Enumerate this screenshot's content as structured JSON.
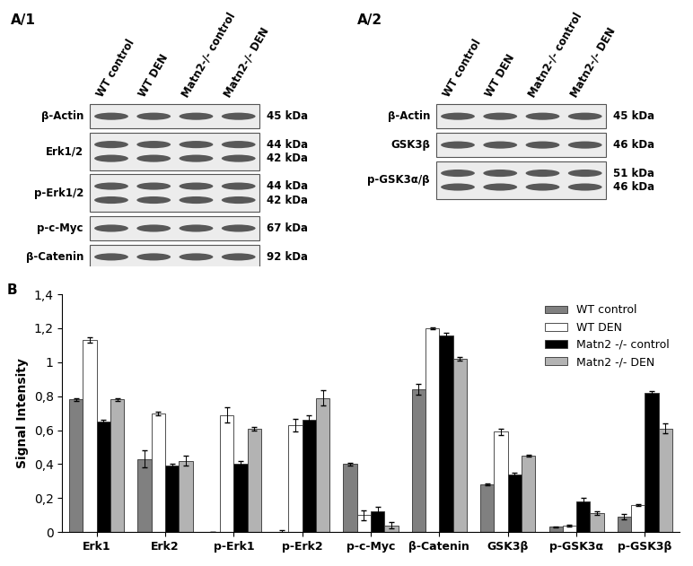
{
  "chart_data": {
    "type": "bar",
    "title": "B",
    "y_label": "Signal Intensity",
    "categories": [
      "Erk1",
      "Erk2",
      "p-Erk1",
      "p-Erk2",
      "p-c-Myc",
      "β-Catenin",
      "GSK3β",
      "p-GSK3α",
      "p-GSK3β"
    ],
    "series": [
      {
        "name": "WT control",
        "color": "#808080",
        "values": [
          0.78,
          0.43,
          0.0,
          0.0,
          0.4,
          0.84,
          0.28,
          0.03,
          0.09
        ],
        "errors": [
          0.01,
          0.05,
          0.0,
          0.01,
          0.01,
          0.03,
          0.005,
          0.005,
          0.015
        ]
      },
      {
        "name": "WT DEN",
        "color": "#ffffff",
        "values": [
          1.13,
          0.7,
          0.69,
          0.63,
          0.1,
          1.2,
          0.59,
          0.04,
          0.16
        ],
        "errors": [
          0.015,
          0.01,
          0.045,
          0.035,
          0.03,
          0.005,
          0.02,
          0.005,
          0.005
        ]
      },
      {
        "name": "Matn2 -/- control",
        "color": "#000000",
        "values": [
          0.65,
          0.39,
          0.4,
          0.66,
          0.12,
          1.16,
          0.34,
          0.18,
          0.82
        ],
        "errors": [
          0.01,
          0.01,
          0.02,
          0.03,
          0.03,
          0.015,
          0.01,
          0.02,
          0.01
        ]
      },
      {
        "name": "Matn2 -/- DEN",
        "color": "#b3b3b3",
        "values": [
          0.78,
          0.42,
          0.61,
          0.79,
          0.04,
          1.02,
          0.45,
          0.11,
          0.61
        ],
        "errors": [
          0.01,
          0.03,
          0.01,
          0.045,
          0.02,
          0.01,
          0.005,
          0.01,
          0.03
        ]
      }
    ],
    "ylim": [
      0,
      1.4
    ],
    "yticks": [
      0,
      {
        "value": 0.2,
        "label": "0,2"
      },
      {
        "value": 0.4,
        "label": "0,4"
      },
      {
        "value": 0.6,
        "label": "0,6"
      },
      {
        "value": 0.8,
        "label": "0,8"
      },
      {
        "value": 1.0,
        "label": "1"
      },
      {
        "value": 1.2,
        "label": "1,2"
      },
      {
        "value": 1.4,
        "label": "1,4"
      }
    ],
    "legend": "upper right",
    "grid": false
  },
  "panels": [
    {
      "label": "A/1",
      "lanes": [
        "WT control",
        "WT DEN",
        "Matn2-/- control",
        "Matn2-/- DEN"
      ],
      "rows": [
        {
          "name": "β-Actin",
          "kda": [
            "45 kDa"
          ]
        },
        {
          "name": "Erk1/2",
          "kda": [
            "44 kDa",
            "42 kDa"
          ]
        },
        {
          "name": "p-Erk1/2",
          "kda": [
            "44 kDa",
            "42 kDa"
          ]
        },
        {
          "name": "p-c-Myc",
          "kda": [
            "67 kDa"
          ]
        },
        {
          "name": "β-Catenin",
          "kda": [
            "92 kDa"
          ]
        }
      ]
    },
    {
      "label": "A/2",
      "lanes": [
        "WT control",
        "WT DEN",
        "Matn2-/- control",
        "Matn2-/- DEN"
      ],
      "rows": [
        {
          "name": "β-Actin",
          "kda": [
            "45 kDa"
          ]
        },
        {
          "name": "GSK3β",
          "kda": [
            "46 kDa"
          ]
        },
        {
          "name": "p-GSK3α/β",
          "kda": [
            "51 kDa",
            "46 kDa"
          ]
        }
      ]
    }
  ]
}
